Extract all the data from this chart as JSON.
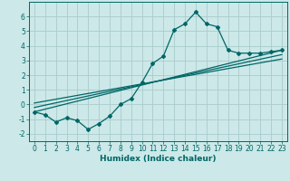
{
  "xlabel": "Humidex (Indice chaleur)",
  "bg_color": "#cce8e8",
  "grid_color": "#aacccc",
  "line_color": "#006666",
  "xlim": [
    -0.5,
    23.5
  ],
  "ylim": [
    -2.5,
    7.0
  ],
  "yticks": [
    -2,
    -1,
    0,
    1,
    2,
    3,
    4,
    5,
    6
  ],
  "xticks": [
    0,
    1,
    2,
    3,
    4,
    5,
    6,
    7,
    8,
    9,
    10,
    11,
    12,
    13,
    14,
    15,
    16,
    17,
    18,
    19,
    20,
    21,
    22,
    23
  ],
  "main_x": [
    0,
    1,
    2,
    3,
    4,
    5,
    6,
    7,
    8,
    9,
    10,
    11,
    12,
    13,
    14,
    15,
    16,
    17,
    18,
    19,
    20,
    21,
    22,
    23
  ],
  "main_y": [
    -0.5,
    -0.7,
    -1.2,
    -0.9,
    -1.1,
    -1.7,
    -1.3,
    -0.8,
    0.0,
    0.4,
    1.5,
    2.8,
    3.3,
    5.1,
    5.5,
    6.3,
    5.5,
    5.3,
    3.7,
    3.5,
    3.5,
    3.5,
    3.6,
    3.7
  ],
  "line1_x": [
    0,
    23
  ],
  "line1_y": [
    -0.5,
    3.7
  ],
  "line2_x": [
    0,
    23
  ],
  "line2_y": [
    -0.2,
    3.4
  ],
  "line3_x": [
    0,
    23
  ],
  "line3_y": [
    0.1,
    3.1
  ],
  "tick_fontsize": 5.5,
  "xlabel_fontsize": 6.5,
  "marker_size": 2.0,
  "line_width": 0.9
}
